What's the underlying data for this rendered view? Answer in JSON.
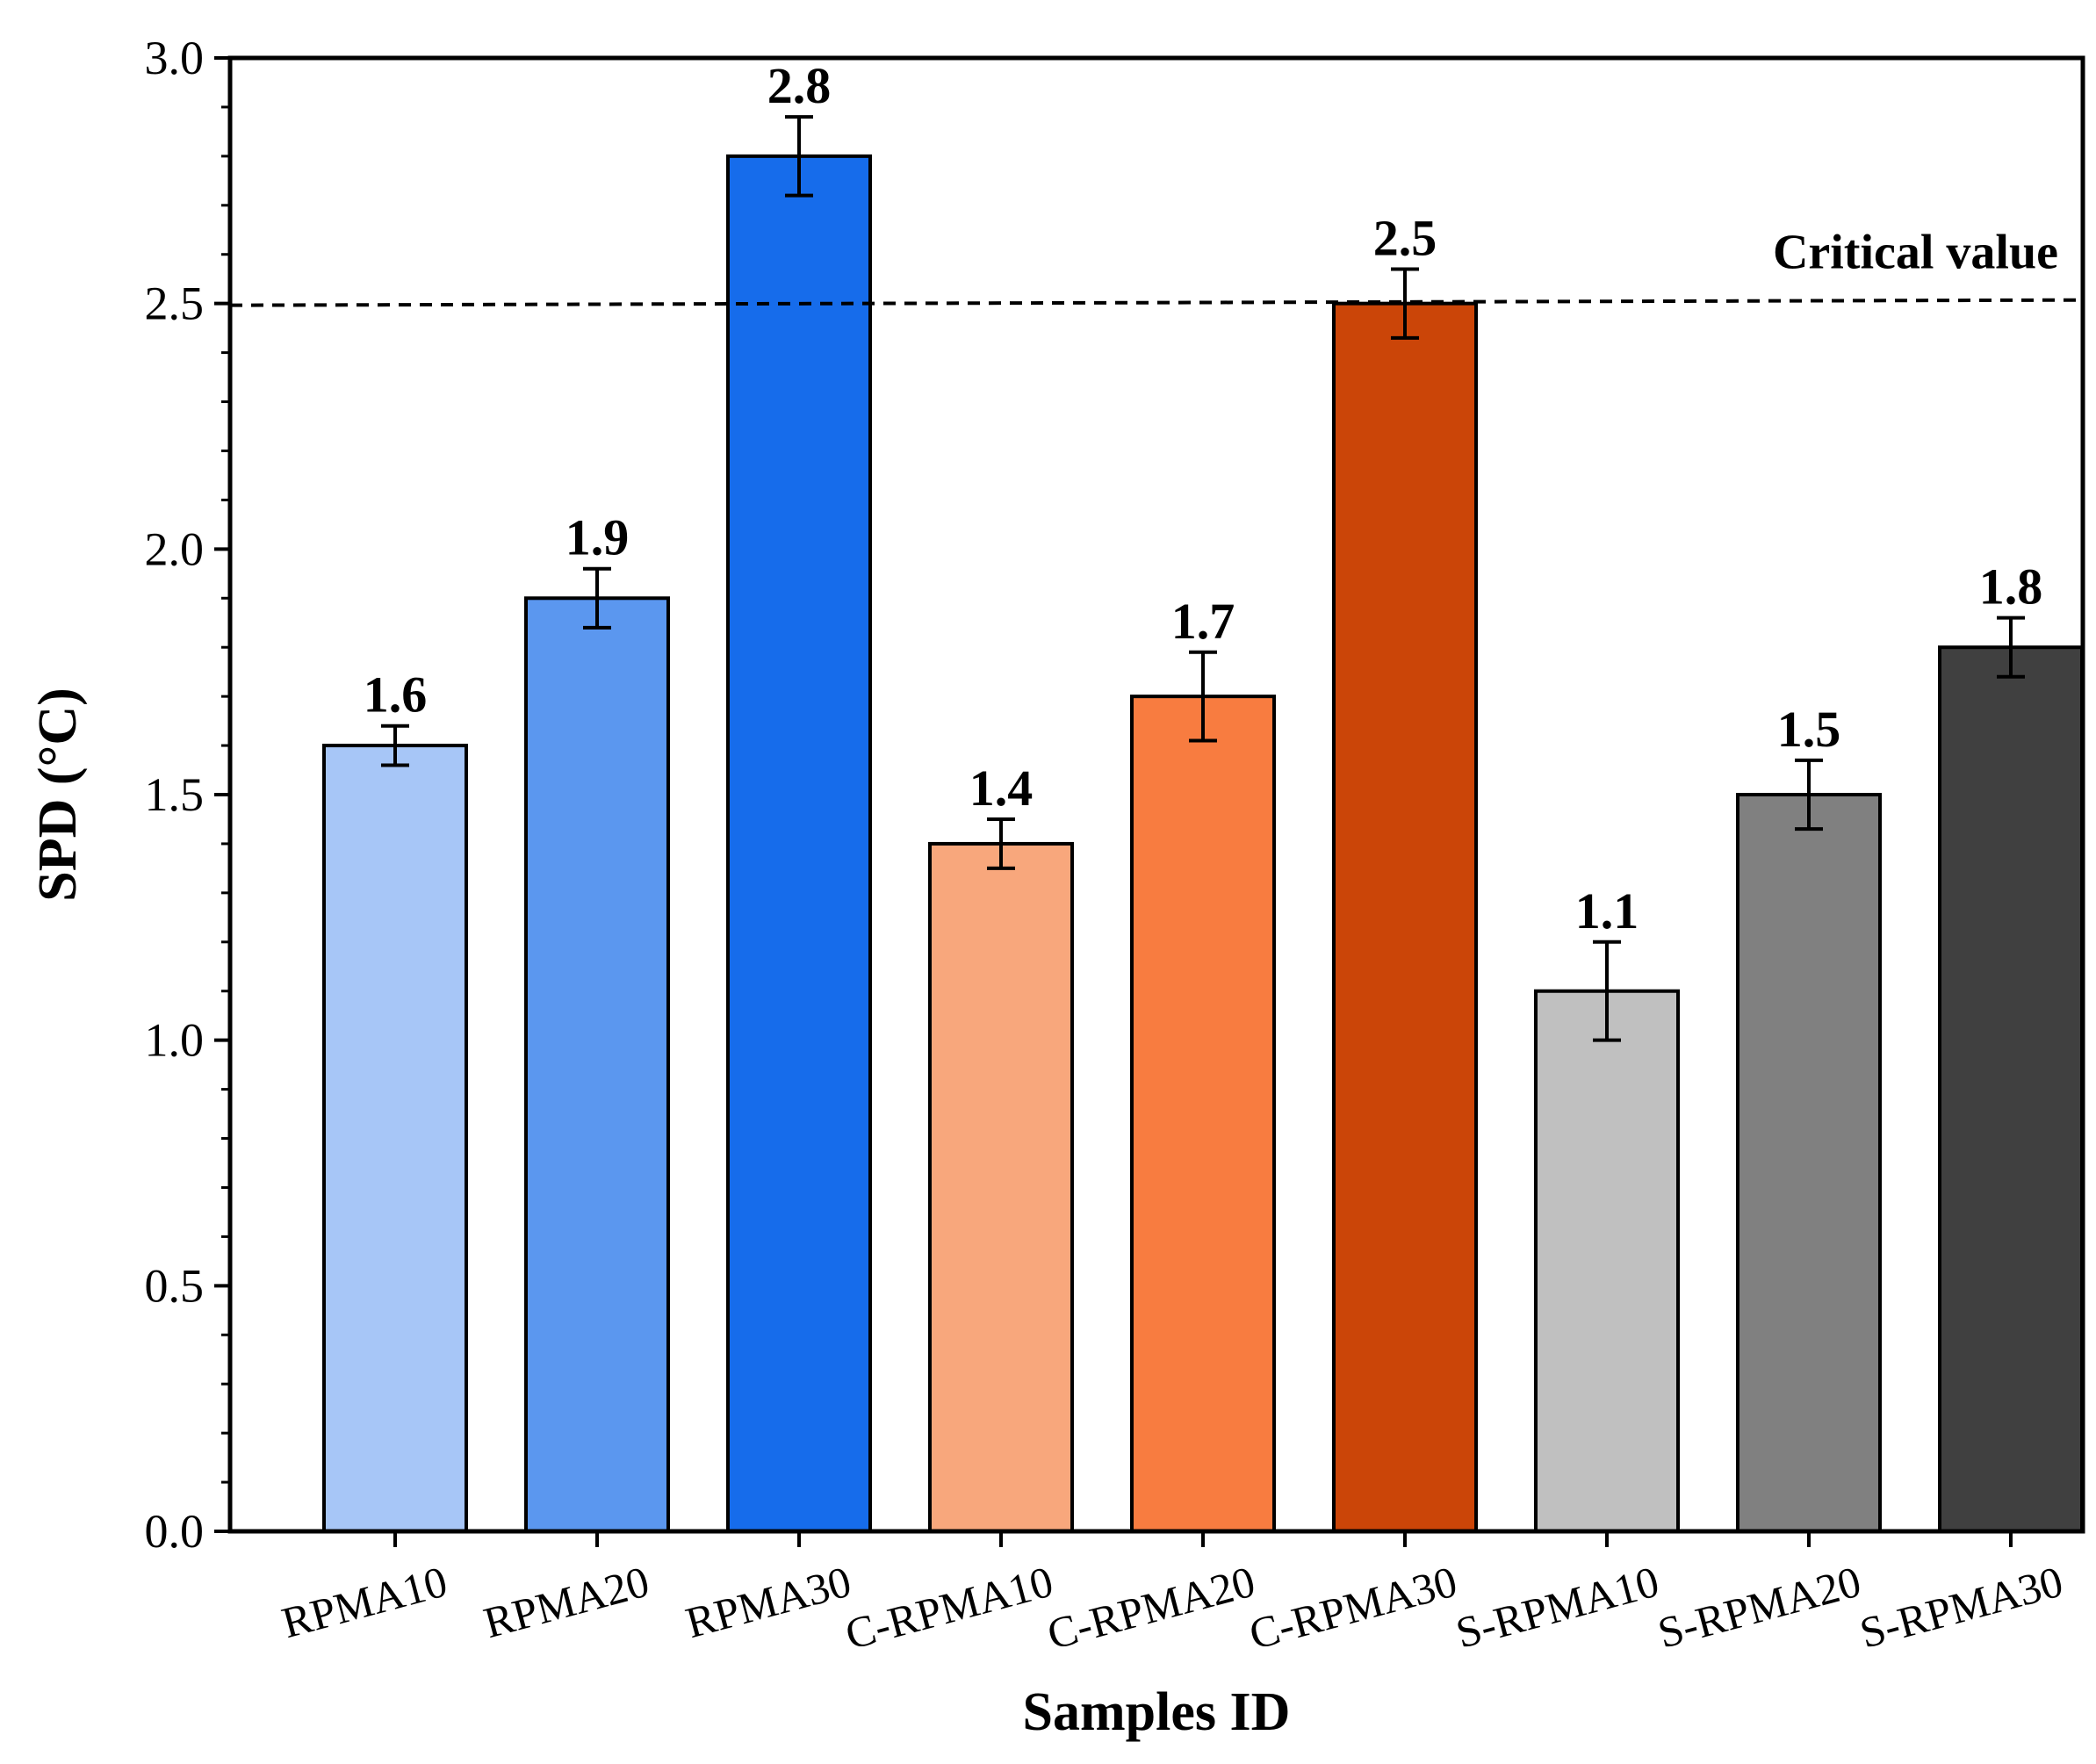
{
  "chart_data": {
    "type": "bar",
    "title": "",
    "xlabel": "Samples ID",
    "ylabel": "SPD (°C)",
    "ylim": [
      0,
      3.0
    ],
    "yticks": [
      "0.0",
      "0.5",
      "1.0",
      "1.5",
      "2.0",
      "2.5",
      "3.0"
    ],
    "categories": [
      "RPMA10",
      "RPMA20",
      "RPMA30",
      "C-RPMA10",
      "C-RPMA20",
      "C-RPMA30",
      "S-RPMA10",
      "S-RPMA20",
      "S-RPMA30"
    ],
    "values": [
      1.6,
      1.9,
      2.8,
      1.4,
      1.7,
      2.5,
      1.1,
      1.5,
      1.8
    ],
    "value_labels": [
      "1.6",
      "1.9",
      "2.8",
      "1.4",
      "1.7",
      "2.5",
      "1.1",
      "1.5",
      "1.8"
    ],
    "errors": [
      0.04,
      0.06,
      0.08,
      0.05,
      0.09,
      0.07,
      0.1,
      0.07,
      0.06
    ],
    "colors": [
      "#a7c6f7",
      "#5b97ef",
      "#166ceb",
      "#f8a77c",
      "#f87c40",
      "#cb4508",
      "#c0c0c0",
      "#808080",
      "#404040"
    ],
    "reference_line": {
      "value": 2.5,
      "label": "Critical value",
      "style": "dashed"
    },
    "grid": false
  }
}
